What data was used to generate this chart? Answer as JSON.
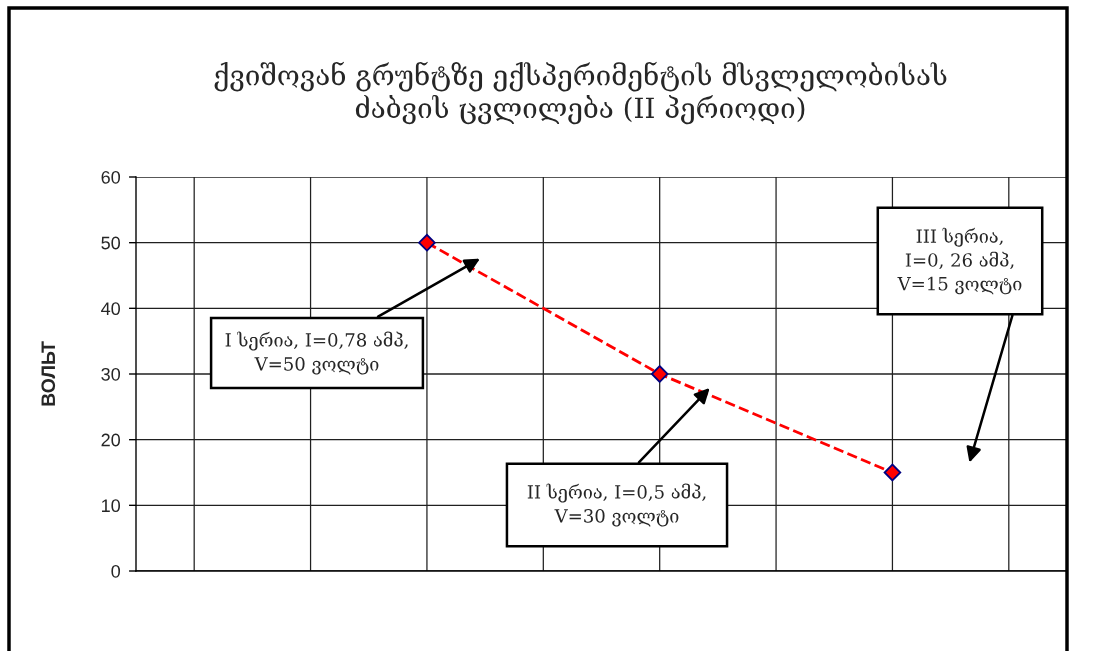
{
  "chart_data": {
    "type": "line",
    "title": "ქვიშოვან გრუნტზე ექსპერიმენტის მსვლელობისას\nძაბვის ცვლილება (II პერიოდი)",
    "ylabel": "ВОЛЬТ",
    "categories": [
      null,
      null,
      null,
      null,
      null,
      null,
      null,
      null
    ],
    "values": [
      null,
      null,
      50,
      null,
      30,
      null,
      15,
      null
    ],
    "color": "#ff0000",
    "marker": "diamond",
    "line_style": "dashed",
    "ylim": [
      0,
      60
    ],
    "yticks": [
      0,
      10,
      20,
      30,
      40,
      50,
      60
    ],
    "grid": true,
    "tick_labels": "y",
    "annotations": [
      "I სერია, I=0,78 ამპ,\nV=50 ვოლტი",
      "II სერია, I=0,5 ამპ,\nV=30 ვოლტი",
      "III სერია,\nI=0, 26 ამპ,\nV=15 ვოლტი"
    ]
  }
}
